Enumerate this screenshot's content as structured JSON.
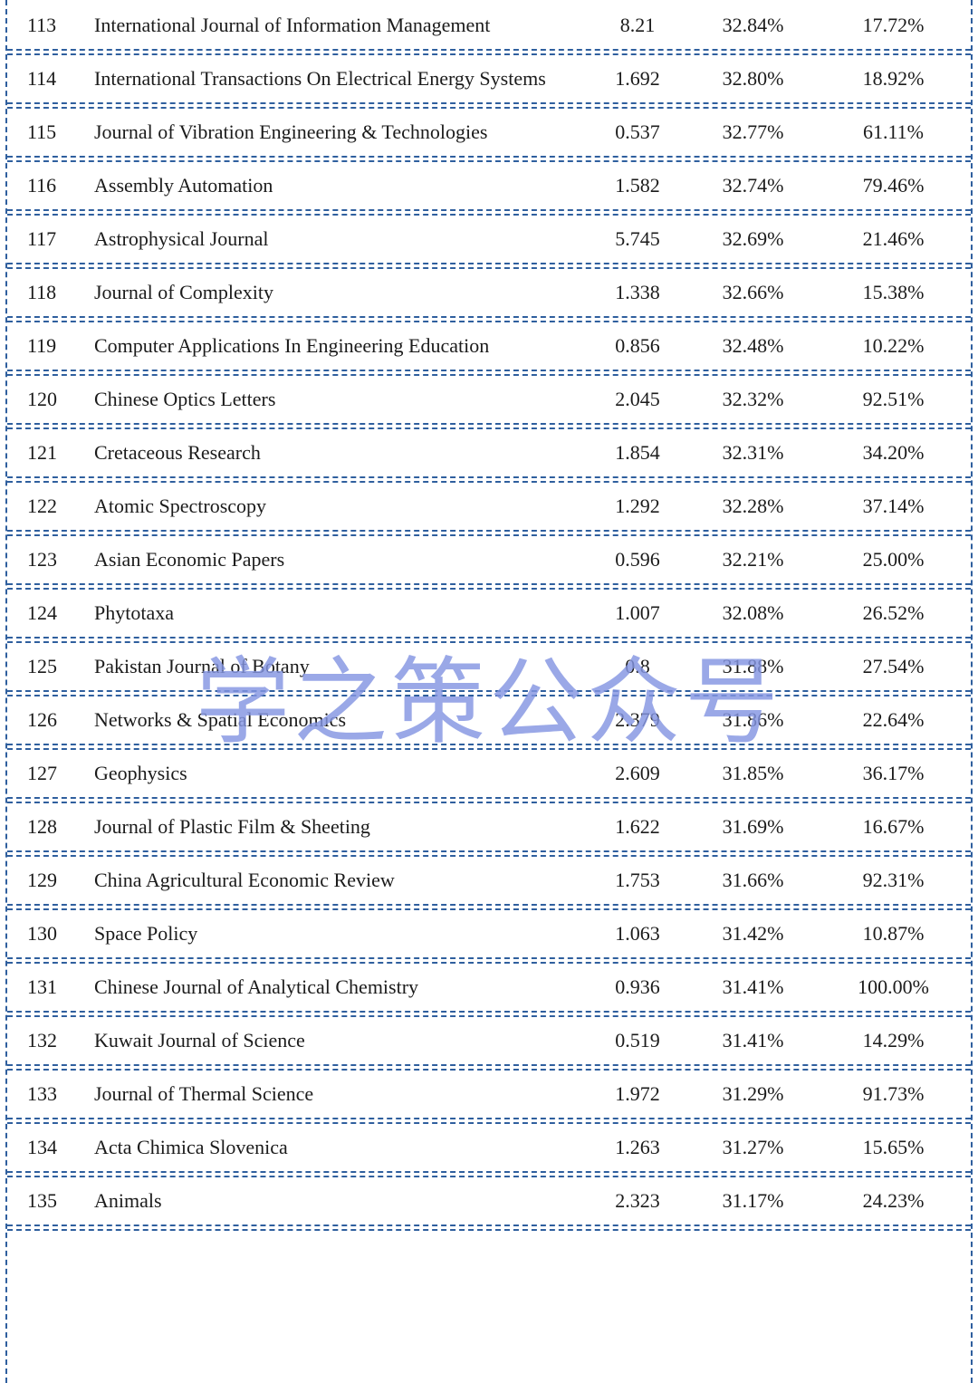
{
  "watermark": {
    "text": "学之策公众号"
  },
  "colors": {
    "separator": "#2f5f9e",
    "text": "#1b1b1b",
    "watermark": "#8495e2"
  },
  "table": {
    "rows": [
      {
        "no": "113",
        "name": "International Journal of Information Management",
        "value": "8.21",
        "pct1": "32.84%",
        "pct2": "17.72%"
      },
      {
        "no": "114",
        "name": "International Transactions On Electrical Energy Systems",
        "value": "1.692",
        "pct1": "32.80%",
        "pct2": "18.92%"
      },
      {
        "no": "115",
        "name": "Journal of Vibration Engineering & Technologies",
        "value": "0.537",
        "pct1": "32.77%",
        "pct2": "61.11%"
      },
      {
        "no": "116",
        "name": "Assembly Automation",
        "value": "1.582",
        "pct1": "32.74%",
        "pct2": "79.46%"
      },
      {
        "no": "117",
        "name": "Astrophysical Journal",
        "value": "5.745",
        "pct1": "32.69%",
        "pct2": "21.46%"
      },
      {
        "no": "118",
        "name": "Journal of Complexity",
        "value": "1.338",
        "pct1": "32.66%",
        "pct2": "15.38%"
      },
      {
        "no": "119",
        "name": "Computer Applications In Engineering Education",
        "value": "0.856",
        "pct1": "32.48%",
        "pct2": "10.22%"
      },
      {
        "no": "120",
        "name": "Chinese Optics Letters",
        "value": "2.045",
        "pct1": "32.32%",
        "pct2": "92.51%"
      },
      {
        "no": "121",
        "name": "Cretaceous Research",
        "value": "1.854",
        "pct1": "32.31%",
        "pct2": "34.20%"
      },
      {
        "no": "122",
        "name": "Atomic Spectroscopy",
        "value": "1.292",
        "pct1": "32.28%",
        "pct2": "37.14%"
      },
      {
        "no": "123",
        "name": "Asian Economic Papers",
        "value": "0.596",
        "pct1": "32.21%",
        "pct2": "25.00%"
      },
      {
        "no": "124",
        "name": "Phytotaxa",
        "value": "1.007",
        "pct1": "32.08%",
        "pct2": "26.52%"
      },
      {
        "no": "125",
        "name": "Pakistan Journal of Botany",
        "value": "0.8",
        "pct1": "31.88%",
        "pct2": "27.54%"
      },
      {
        "no": "126",
        "name": "Networks & Spatial Economics",
        "value": "2.379",
        "pct1": "31.86%",
        "pct2": "22.64%"
      },
      {
        "no": "127",
        "name": "Geophysics",
        "value": "2.609",
        "pct1": "31.85%",
        "pct2": "36.17%"
      },
      {
        "no": "128",
        "name": "Journal of Plastic Film & Sheeting",
        "value": "1.622",
        "pct1": "31.69%",
        "pct2": "16.67%"
      },
      {
        "no": "129",
        "name": "China Agricultural Economic Review",
        "value": "1.753",
        "pct1": "31.66%",
        "pct2": "92.31%"
      },
      {
        "no": "130",
        "name": "Space Policy",
        "value": "1.063",
        "pct1": "31.42%",
        "pct2": "10.87%"
      },
      {
        "no": "131",
        "name": "Chinese Journal of Analytical Chemistry",
        "value": "0.936",
        "pct1": "31.41%",
        "pct2": "100.00%"
      },
      {
        "no": "132",
        "name": "Kuwait Journal of Science",
        "value": "0.519",
        "pct1": "31.41%",
        "pct2": "14.29%"
      },
      {
        "no": "133",
        "name": "Journal of Thermal Science",
        "value": "1.972",
        "pct1": "31.29%",
        "pct2": "91.73%"
      },
      {
        "no": "134",
        "name": "Acta Chimica Slovenica",
        "value": "1.263",
        "pct1": "31.27%",
        "pct2": "15.65%"
      },
      {
        "no": "135",
        "name": "Animals",
        "value": "2.323",
        "pct1": "31.17%",
        "pct2": "24.23%"
      }
    ]
  }
}
